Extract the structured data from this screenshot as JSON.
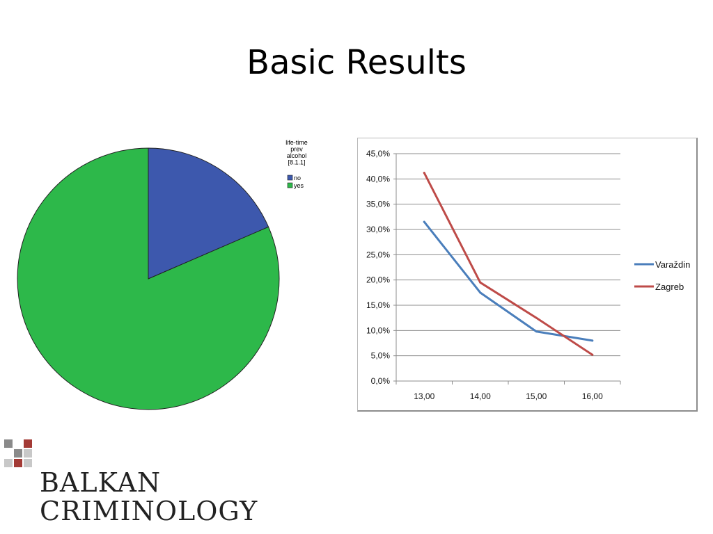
{
  "slide": {
    "title": "Basic Results"
  },
  "chart_data": [
    {
      "type": "pie",
      "legend_title": "life-time prev alcohol [8.1.1]",
      "legend_title_lines": [
        "life-time",
        "prev",
        "alcohol",
        "[8.1.1]"
      ],
      "legend_position": "top-right",
      "categories": [
        "no",
        "yes"
      ],
      "values": [
        18.5,
        81.5
      ],
      "colors": [
        "#3d58ad",
        "#2db84a"
      ]
    },
    {
      "type": "line",
      "x": [
        "13,00",
        "14,00",
        "15,00",
        "16,00"
      ],
      "y_ticks": [
        "0,0%",
        "5,0%",
        "10,0%",
        "15,0%",
        "20,0%",
        "25,0%",
        "30,0%",
        "35,0%",
        "40,0%",
        "45,0%"
      ],
      "ylim": [
        0,
        45
      ],
      "grid": true,
      "legend_position": "right",
      "series": [
        {
          "name": "Varaždin",
          "values": [
            31.5,
            17.5,
            9.8,
            8.0
          ],
          "color": "#4a7ebb"
        },
        {
          "name": "Zagreb",
          "values": [
            41.2,
            19.5,
            12.5,
            5.2
          ],
          "color": "#be4b48"
        }
      ]
    }
  ],
  "logo": {
    "line1": "BALKAN",
    "line2": "CRIMINOLOGY",
    "squares": [
      "#8a8a8a",
      "#ffffff",
      "#a33a35",
      "#ffffff",
      "#8a8a8a",
      "#c8c8c8",
      "#c8c8c8",
      "#a33a35",
      "#c8c8c8"
    ]
  }
}
